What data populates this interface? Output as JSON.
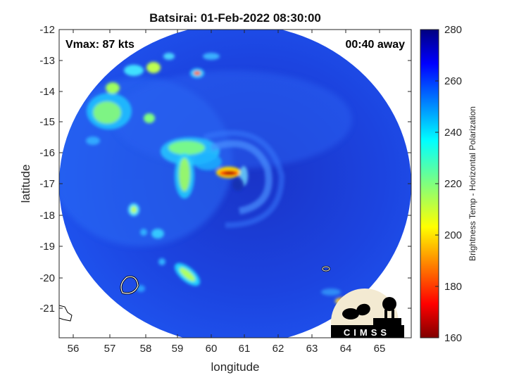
{
  "title": "Batsirai: 01-Feb-2022 08:30:00",
  "vmax_label": "Vmax: 87 kts",
  "time_offset_label": "00:40 away",
  "xaxis": {
    "label": "longitude",
    "ticks": [
      "56",
      "57",
      "58",
      "59",
      "60",
      "61",
      "62",
      "63",
      "64",
      "65"
    ],
    "range": [
      55.5,
      65.9
    ]
  },
  "yaxis": {
    "label": "latitude",
    "ticks": [
      "-12",
      "-13",
      "-14",
      "-15",
      "-16",
      "-17",
      "-18",
      "-19",
      "-20",
      "-21"
    ],
    "range": [
      -21.9,
      -12
    ]
  },
  "colorbar": {
    "label": "Brightness Temp - Horizontal Polarization",
    "ticks": [
      "280",
      "260",
      "240",
      "220",
      "200",
      "180",
      "160"
    ],
    "range": [
      160,
      280
    ],
    "colormap": "jet"
  },
  "logo": {
    "text": "CIMSS"
  },
  "colors": {
    "background_ocean": "#1f3fd9",
    "land_outline": "#ffffff",
    "coast_outline": "#000000"
  }
}
